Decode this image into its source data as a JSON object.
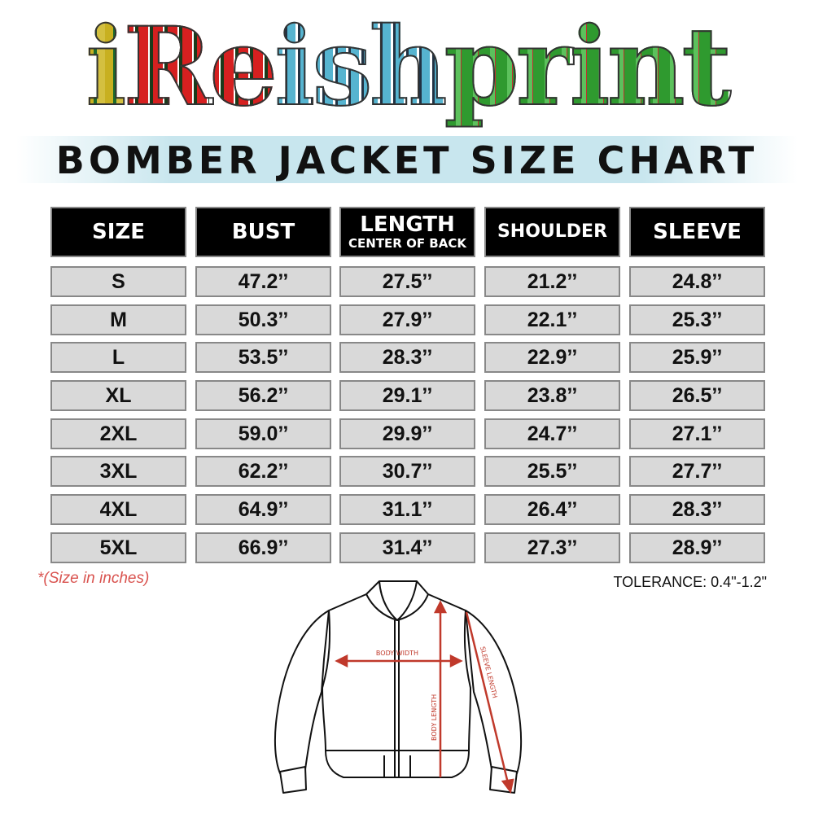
{
  "brand": {
    "logo_text": "iReishprint",
    "letters": [
      "i",
      "R",
      "e",
      "i",
      "s",
      "h",
      "p",
      "r",
      "i",
      "n",
      "t"
    ]
  },
  "title": "BOMBER JACKET SIZE CHART",
  "table": {
    "headers": [
      {
        "label": "SIZE"
      },
      {
        "label": "BUST"
      },
      {
        "label": "LENGTH",
        "sub": "CENTER OF BACK"
      },
      {
        "label": "SHOULDER"
      },
      {
        "label": "SLEEVE"
      }
    ],
    "rows": [
      [
        "S",
        "47.2’’",
        "27.5’’",
        "21.2’’",
        "24.8’’"
      ],
      [
        "M",
        "50.3’’",
        "27.9’’",
        "22.1’’",
        "25.3’’"
      ],
      [
        "L",
        "53.5’’",
        "28.3’’",
        "22.9’’",
        "25.9’’"
      ],
      [
        "XL",
        "56.2’’",
        "29.1’’",
        "23.8’’",
        "26.5’’"
      ],
      [
        "2XL",
        "59.0’’",
        "29.9’’",
        "24.7’’",
        "27.1’’"
      ],
      [
        "3XL",
        "62.2’’",
        "30.7’’",
        "25.5’’",
        "27.7’’"
      ],
      [
        "4XL",
        "64.9’’",
        "31.1’’",
        "26.4’’",
        "28.3’’"
      ],
      [
        "5XL",
        "66.9’’",
        "31.4’’",
        "27.3’’",
        "28.9’’"
      ]
    ]
  },
  "note": "*(Size in inches)",
  "tolerance": "TOLERANCE: 0.4\"-1.2\"",
  "diagram": {
    "body_width": "BODY WIDTH",
    "body_length": "BODY LENGTH",
    "sleeve_length": "SLEEVE LENGTH"
  },
  "colors": {
    "header_bg": "#000000",
    "cell_bg": "#d9d9d9",
    "accent_red": "#c0392b",
    "note_red": "#d9534f"
  }
}
